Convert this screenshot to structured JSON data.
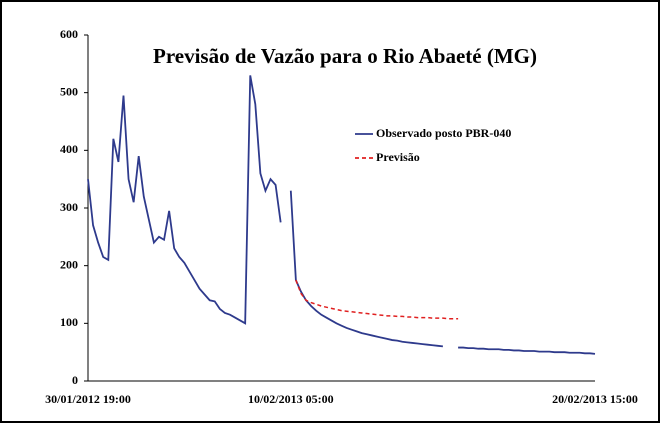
{
  "chart_data": {
    "type": "line",
    "title": "Previsão de Vazão para o Rio Abaeté (MG)",
    "categories": [
      "30/01/2012 19:00",
      null,
      null,
      null,
      null,
      null,
      null,
      null,
      null,
      null,
      null,
      null,
      null,
      null,
      null,
      null,
      null,
      null,
      null,
      null,
      null,
      null,
      null,
      null,
      null,
      null,
      null,
      null,
      null,
      null,
      null,
      null,
      null,
      null,
      null,
      null,
      null,
      null,
      null,
      null,
      "10/02/2013 05:00",
      null,
      null,
      null,
      null,
      null,
      null,
      null,
      null,
      null,
      null,
      null,
      null,
      null,
      null,
      null,
      null,
      null,
      null,
      null,
      null,
      null,
      null,
      null,
      null,
      null,
      null,
      null,
      null,
      null,
      null,
      null,
      null,
      null,
      null,
      null,
      null,
      null,
      null,
      null,
      null,
      null,
      null,
      null,
      null,
      null,
      null,
      null,
      null,
      null,
      null,
      null,
      null,
      null,
      null,
      null,
      null,
      null,
      null,
      null,
      "20/02/2013 15:00"
    ],
    "series": [
      {
        "name": "Observado posto PBR-040",
        "color": "#2e3a8c",
        "dashed": false,
        "values": [
          350,
          270,
          240,
          215,
          210,
          420,
          380,
          495,
          350,
          310,
          390,
          320,
          280,
          240,
          250,
          245,
          295,
          230,
          215,
          205,
          190,
          175,
          160,
          150,
          140,
          138,
          125,
          118,
          115,
          110,
          105,
          100,
          530,
          480,
          360,
          330,
          350,
          340,
          275,
          null,
          330,
          175,
          155,
          140,
          130,
          122,
          115,
          110,
          105,
          100,
          96,
          92,
          89,
          86,
          83,
          81,
          79,
          77,
          75,
          73,
          71,
          70,
          68,
          67,
          66,
          65,
          64,
          63,
          62,
          61,
          60,
          null,
          null,
          58,
          58,
          57,
          57,
          56,
          56,
          55,
          55,
          55,
          54,
          54,
          53,
          53,
          52,
          52,
          52,
          51,
          51,
          51,
          50,
          50,
          50,
          49,
          49,
          49,
          48,
          48,
          47
        ]
      },
      {
        "name": "Previsão",
        "color": "#e02020",
        "dashed": true,
        "values": [
          null,
          null,
          null,
          null,
          null,
          null,
          null,
          null,
          null,
          null,
          null,
          null,
          null,
          null,
          null,
          null,
          null,
          null,
          null,
          null,
          null,
          null,
          null,
          null,
          null,
          null,
          null,
          null,
          null,
          null,
          null,
          null,
          null,
          null,
          null,
          null,
          null,
          null,
          null,
          null,
          null,
          175,
          152,
          140,
          136,
          133,
          130,
          128,
          126,
          124,
          122,
          121,
          120,
          119,
          118,
          117,
          116,
          115,
          114,
          113,
          113,
          112,
          112,
          111,
          111,
          110,
          110,
          110,
          109,
          109,
          109,
          108,
          108,
          108,
          null,
          null,
          null,
          null,
          null,
          null,
          null,
          null,
          null,
          null,
          null,
          null,
          null,
          null,
          null,
          null,
          null,
          null,
          null,
          null,
          null,
          null,
          null,
          null,
          null,
          null,
          null
        ]
      }
    ],
    "ylim": [
      0,
      600
    ],
    "yticks": [
      0,
      100,
      200,
      300,
      400,
      500,
      600
    ],
    "grid": false,
    "legend": "upper right"
  }
}
